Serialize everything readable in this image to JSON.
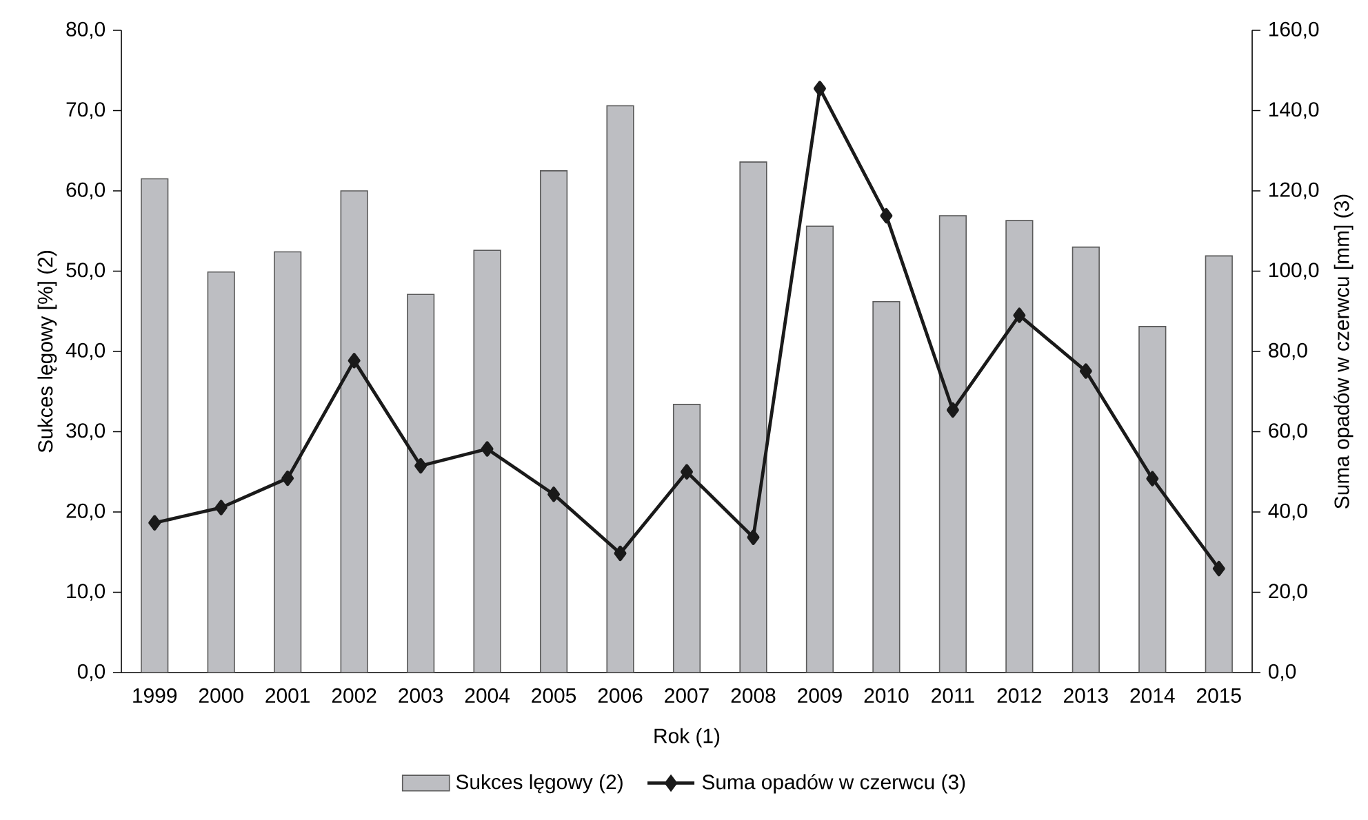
{
  "chart_data": {
    "type": "bar",
    "xlabel": "Rok (1)",
    "ylabel": "Sukces lęgowy [%] (2)",
    "y2label": "Suma opadów w czerwcu [mm] (3)",
    "categories": [
      "1999",
      "2000",
      "2001",
      "2002",
      "2003",
      "2004",
      "2005",
      "2006",
      "2007",
      "2008",
      "2009",
      "2010",
      "2011",
      "2012",
      "2013",
      "2014",
      "2015"
    ],
    "series": [
      {
        "name": "Sukces lęgowy (2)",
        "color": "#bdbec2",
        "values": [
          61.5,
          49.9,
          52.4,
          60.0,
          47.1,
          52.6,
          62.5,
          70.6,
          33.4,
          63.6,
          55.6,
          46.2,
          56.9,
          56.3,
          53.0,
          43.1,
          51.9
        ]
      },
      {
        "name": "Suma opadów w czerwcu (3)",
        "type": "line",
        "axis": "y2",
        "color": "#1a1a1a",
        "values": [
          37.3,
          41.1,
          48.4,
          77.7,
          51.5,
          55.7,
          44.4,
          29.7,
          50.0,
          33.7,
          145.5,
          113.8,
          65.4,
          89.0,
          75.1,
          48.3,
          25.9
        ]
      }
    ],
    "ylim": [
      0,
      80
    ],
    "yticks": [
      {
        "value": 0,
        "label": "0,0"
      },
      {
        "value": 10,
        "label": "10,0"
      },
      {
        "value": 20,
        "label": "20,0"
      },
      {
        "value": 30,
        "label": "30,0"
      },
      {
        "value": 40,
        "label": "40,0"
      },
      {
        "value": 50,
        "label": "50,0"
      },
      {
        "value": 60,
        "label": "60,0"
      },
      {
        "value": 70,
        "label": "70,0"
      },
      {
        "value": 80,
        "label": "80,0"
      }
    ],
    "y2lim": [
      0,
      160
    ],
    "y2ticks": [
      {
        "value": 0,
        "label": "0,0"
      },
      {
        "value": 20,
        "label": "20,0"
      },
      {
        "value": 40,
        "label": "40,0"
      },
      {
        "value": 60,
        "label": "60,0"
      },
      {
        "value": 80,
        "label": "80,0"
      },
      {
        "value": 100,
        "label": "100,0"
      },
      {
        "value": 120,
        "label": "120,0"
      },
      {
        "value": 140,
        "label": "140,0"
      },
      {
        "value": 160,
        "label": "160,0"
      }
    ],
    "marker": "diamond",
    "grid": false,
    "legend": "bottom"
  }
}
